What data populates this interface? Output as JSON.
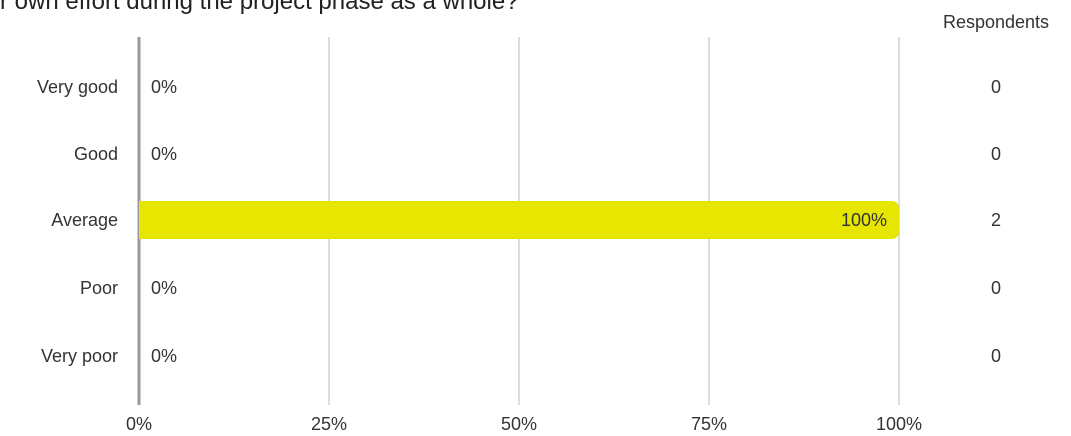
{
  "title": "r own effort during the project phase as a whole?",
  "colors": {
    "bar": "#e6e600",
    "grid": "#bbbbbb",
    "axis": "#999999",
    "text": "#333333"
  },
  "chart_data": {
    "type": "bar",
    "orientation": "horizontal",
    "categories": [
      "Very good",
      "Good",
      "Average",
      "Poor",
      "Very poor"
    ],
    "values": [
      0,
      0,
      100,
      0,
      0
    ],
    "value_labels": [
      "0%",
      "0%",
      "100%",
      "0%",
      "0%"
    ],
    "respondents_header": "Respondents",
    "respondents": [
      0,
      0,
      2,
      0,
      0
    ],
    "x_ticks": [
      0,
      25,
      50,
      75,
      100
    ],
    "x_tick_labels": [
      "0%",
      "25%",
      "50%",
      "75%",
      "100%"
    ],
    "xlim": [
      0,
      100
    ],
    "grid": true
  }
}
